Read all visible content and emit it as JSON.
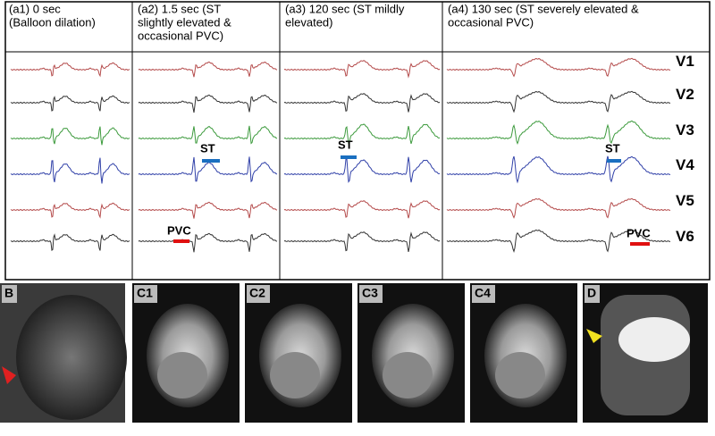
{
  "panels": [
    {
      "lines": [
        "(a1) 0 sec",
        "(Balloon dilation)"
      ]
    },
    {
      "lines": [
        "(a2) 1.5 sec (ST",
        "slightly elevated &",
        "occasional PVC)"
      ]
    },
    {
      "lines": [
        "(a3) 120 sec (ST mildly",
        "elevated)"
      ]
    },
    {
      "lines": [
        "(a4) 130 sec (ST severely elevated &",
        "occasional PVC)"
      ]
    }
  ],
  "leads": [
    "V1",
    "V2",
    "V3",
    "V4",
    "V5",
    "V6"
  ],
  "annotations": [
    "ST",
    "ST",
    "ST",
    "PVC",
    "PVC"
  ],
  "images": [
    "B",
    "C1",
    "C2",
    "C3",
    "C4",
    "D"
  ]
}
